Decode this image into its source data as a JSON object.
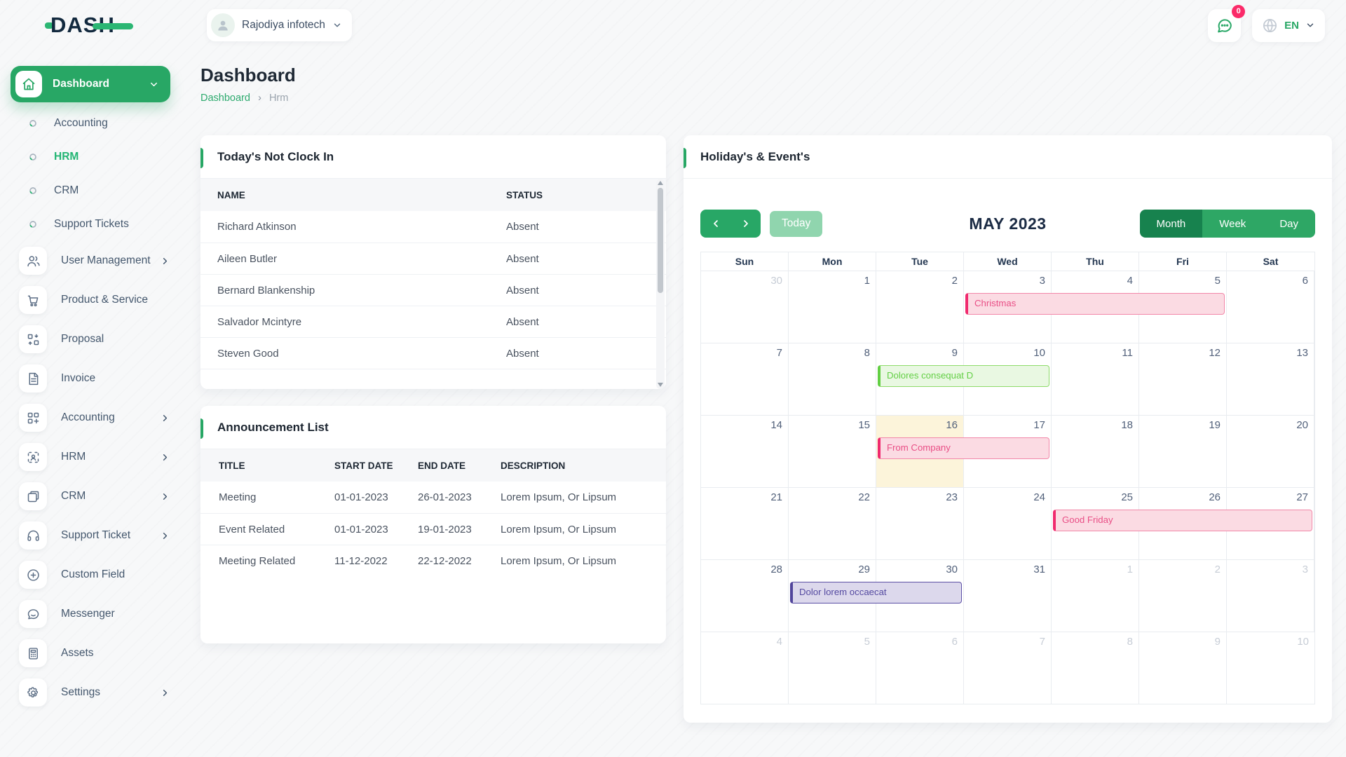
{
  "brand": {
    "name": "DASH"
  },
  "header": {
    "company_name": "Rajodiya infotech",
    "messages_badge": "0",
    "language": "EN"
  },
  "sidebar": {
    "items": [
      {
        "type": "parent",
        "label": "Dashboard",
        "icon": "home-icon",
        "chevron": "down",
        "active": true
      },
      {
        "type": "sub",
        "label": "Accounting"
      },
      {
        "type": "sub",
        "label": "HRM",
        "active": true
      },
      {
        "type": "sub",
        "label": "CRM"
      },
      {
        "type": "sub",
        "label": "Support Tickets"
      },
      {
        "type": "item",
        "label": "User Management",
        "icon": "users-icon",
        "chevron": "right"
      },
      {
        "type": "item",
        "label": "Product & Service",
        "icon": "cart-icon"
      },
      {
        "type": "item",
        "label": "Proposal",
        "icon": "proposal-icon"
      },
      {
        "type": "item",
        "label": "Invoice",
        "icon": "invoice-icon"
      },
      {
        "type": "item",
        "label": "Accounting",
        "icon": "accounting-icon",
        "chevron": "right"
      },
      {
        "type": "item",
        "label": "HRM",
        "icon": "hrm-icon",
        "chevron": "right"
      },
      {
        "type": "item",
        "label": "CRM",
        "icon": "crm-icon",
        "chevron": "right"
      },
      {
        "type": "item",
        "label": "Support Ticket",
        "icon": "headset-icon",
        "chevron": "right"
      },
      {
        "type": "item",
        "label": "Custom Field",
        "icon": "plus-circle-icon"
      },
      {
        "type": "item",
        "label": "Messenger",
        "icon": "messenger-icon"
      },
      {
        "type": "item",
        "label": "Assets",
        "icon": "calculator-icon"
      },
      {
        "type": "item",
        "label": "Settings",
        "icon": "gear-icon",
        "chevron": "right"
      }
    ]
  },
  "page": {
    "title": "Dashboard",
    "breadcrumb_link": "Dashboard",
    "breadcrumb_sep": "›",
    "breadcrumb_current": "Hrm"
  },
  "clockin": {
    "title": "Today's Not Clock In",
    "columns": [
      "NAME",
      "STATUS"
    ],
    "rows": [
      {
        "name": "Richard Atkinson",
        "status": "Absent"
      },
      {
        "name": "Aileen Butler",
        "status": "Absent"
      },
      {
        "name": "Bernard Blankenship",
        "status": "Absent"
      },
      {
        "name": "Salvador Mcintyre",
        "status": "Absent"
      },
      {
        "name": "Steven Good",
        "status": "Absent"
      }
    ]
  },
  "announcements": {
    "title": "Announcement List",
    "columns": [
      "TITLE",
      "START DATE",
      "END DATE",
      "DESCRIPTION"
    ],
    "rows": [
      {
        "title": "Meeting",
        "start": "01-01-2023",
        "end": "26-01-2023",
        "description": "Lorem Ipsum, Or Lipsum"
      },
      {
        "title": "Event Related",
        "start": "01-01-2023",
        "end": "19-01-2023",
        "description": "Lorem Ipsum, Or Lipsum"
      },
      {
        "title": "Meeting Related",
        "start": "11-12-2022",
        "end": "22-12-2022",
        "description": "Lorem Ipsum, Or Lipsum"
      }
    ]
  },
  "calendar": {
    "title": "Holiday's & Event's",
    "month_label": "MAY 2023",
    "today_label": "Today",
    "views": [
      "Month",
      "Week",
      "Day"
    ],
    "active_view": "Month",
    "weekdays": [
      "Sun",
      "Mon",
      "Tue",
      "Wed",
      "Thu",
      "Fri",
      "Sat"
    ],
    "weeks": [
      {
        "days": [
          {
            "num": "30",
            "other": true
          },
          {
            "num": "1"
          },
          {
            "num": "2"
          },
          {
            "num": "3"
          },
          {
            "num": "4"
          },
          {
            "num": "5"
          },
          {
            "num": "6"
          }
        ],
        "events": [
          {
            "label": "Christmas",
            "color": "pink",
            "col": 3,
            "span": 3
          }
        ]
      },
      {
        "days": [
          {
            "num": "7"
          },
          {
            "num": "8"
          },
          {
            "num": "9"
          },
          {
            "num": "10"
          },
          {
            "num": "11"
          },
          {
            "num": "12"
          },
          {
            "num": "13"
          }
        ],
        "events": [
          {
            "label": "Dolores consequat D",
            "color": "green",
            "col": 2,
            "span": 2
          }
        ]
      },
      {
        "days": [
          {
            "num": "14"
          },
          {
            "num": "15"
          },
          {
            "num": "16",
            "today": true
          },
          {
            "num": "17"
          },
          {
            "num": "18"
          },
          {
            "num": "19"
          },
          {
            "num": "20"
          }
        ],
        "events": [
          {
            "label": "From Company",
            "color": "pink",
            "col": 2,
            "span": 2
          }
        ]
      },
      {
        "days": [
          {
            "num": "21"
          },
          {
            "num": "22"
          },
          {
            "num": "23"
          },
          {
            "num": "24"
          },
          {
            "num": "25"
          },
          {
            "num": "26"
          },
          {
            "num": "27"
          }
        ],
        "events": [
          {
            "label": "Good Friday",
            "color": "pink",
            "col": 4,
            "span": 3
          }
        ]
      },
      {
        "days": [
          {
            "num": "28"
          },
          {
            "num": "29"
          },
          {
            "num": "30"
          },
          {
            "num": "31"
          },
          {
            "num": "1",
            "other": true
          },
          {
            "num": "2",
            "other": true
          },
          {
            "num": "3",
            "other": true
          }
        ],
        "events": [
          {
            "label": "Dolor lorem occaecat",
            "color": "purple",
            "col": 1,
            "span": 2
          }
        ]
      },
      {
        "days": [
          {
            "num": "4",
            "other": true
          },
          {
            "num": "5",
            "other": true
          },
          {
            "num": "6",
            "other": true
          },
          {
            "num": "7",
            "other": true
          },
          {
            "num": "8",
            "other": true
          },
          {
            "num": "9",
            "other": true
          },
          {
            "num": "10",
            "other": true
          }
        ],
        "events": []
      }
    ],
    "palette": {
      "pink": {
        "bg": "#fbdbe3",
        "border": "#f287a9",
        "bar": "#f02a6e",
        "text": "#e94f86"
      },
      "green": {
        "bg": "#e9f8e2",
        "border": "#8edb6a",
        "bar": "#62cf43",
        "text": "#63cf45"
      },
      "purple": {
        "bg": "#dcd8ec",
        "border": "#5b4fa5",
        "bar": "#51459b",
        "text": "#554aa1"
      }
    }
  },
  "colors": {
    "primary_green": "#28a765",
    "active_view_green": "#17824e",
    "today_button_green": "#90d5ae",
    "badge_pink": "#fb2a69",
    "link_green": "#2daa6e",
    "today_cell_cream": "#fcf4da"
  }
}
